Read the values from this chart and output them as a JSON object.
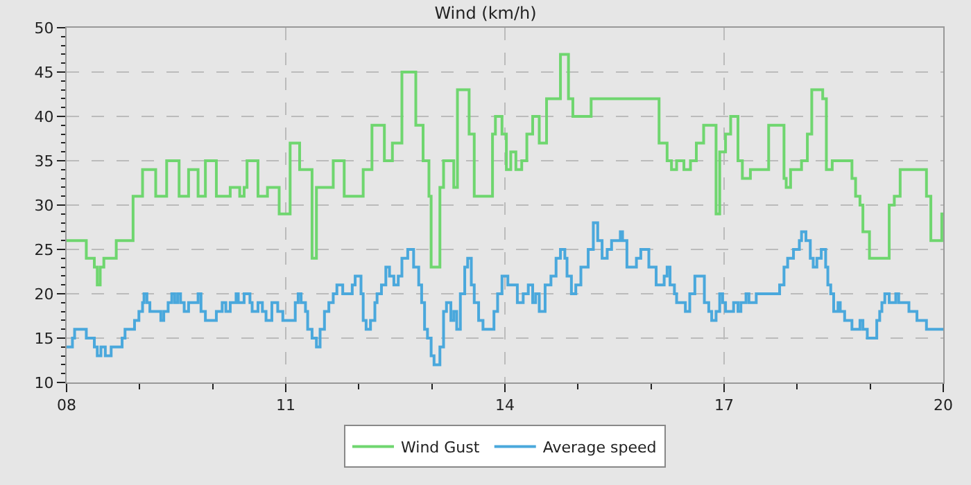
{
  "chart_data": {
    "type": "step",
    "title": "Wind (km/h)",
    "grid": true,
    "legend": "bottom",
    "line_style": "solid",
    "xlim": [
      8,
      20
    ],
    "ylim": [
      10,
      50
    ],
    "xticks": [
      {
        "value": 8,
        "label": "08"
      },
      {
        "value": 9,
        "label": null
      },
      {
        "value": 10,
        "label": null
      },
      {
        "value": 11,
        "label": "11"
      },
      {
        "value": 12,
        "label": null
      },
      {
        "value": 13,
        "label": null
      },
      {
        "value": 14,
        "label": "14"
      },
      {
        "value": 15,
        "label": null
      },
      {
        "value": 16,
        "label": null
      },
      {
        "value": 17,
        "label": "17"
      },
      {
        "value": 18,
        "label": null
      },
      {
        "value": 19,
        "label": null
      },
      {
        "value": 20,
        "label": "20"
      }
    ],
    "yticks": [
      10,
      {
        "value": 11,
        "label": null
      },
      {
        "value": 12,
        "label": null
      },
      {
        "value": 13,
        "label": null
      },
      {
        "value": 14,
        "label": null
      },
      15,
      {
        "value": 16,
        "label": null
      },
      {
        "value": 17,
        "label": null
      },
      {
        "value": 18,
        "label": null
      },
      {
        "value": 19,
        "label": null
      },
      20,
      {
        "value": 21,
        "label": null
      },
      {
        "value": 22,
        "label": null
      },
      {
        "value": 23,
        "label": null
      },
      {
        "value": 24,
        "label": null
      },
      25,
      {
        "value": 26,
        "label": null
      },
      {
        "value": 27,
        "label": null
      },
      {
        "value": 28,
        "label": null
      },
      {
        "value": 29,
        "label": null
      },
      30,
      {
        "value": 31,
        "label": null
      },
      {
        "value": 32,
        "label": null
      },
      {
        "value": 33,
        "label": null
      },
      {
        "value": 34,
        "label": null
      },
      35,
      {
        "value": 36,
        "label": null
      },
      {
        "value": 37,
        "label": null
      },
      {
        "value": 38,
        "label": null
      },
      {
        "value": 39,
        "label": null
      },
      40,
      {
        "value": 41,
        "label": null
      },
      {
        "value": 42,
        "label": null
      },
      {
        "value": 43,
        "label": null
      },
      {
        "value": 44,
        "label": null
      },
      45,
      {
        "value": 46,
        "label": null
      },
      {
        "value": 47,
        "label": null
      },
      {
        "value": 48,
        "label": null
      },
      {
        "value": 49,
        "label": null
      },
      50
    ],
    "series": [
      {
        "name": "Wind Gust",
        "color": "#6fd66f",
        "x": [
          8.0,
          8.27,
          8.38,
          8.42,
          8.46,
          8.51,
          8.68,
          8.91,
          9.04,
          9.22,
          9.37,
          9.54,
          9.67,
          9.8,
          9.9,
          10.05,
          10.24,
          10.37,
          10.43,
          10.47,
          10.62,
          10.75,
          10.91,
          11.06,
          11.19,
          11.36,
          11.42,
          11.59,
          11.65,
          11.8,
          12.06,
          12.18,
          12.35,
          12.46,
          12.59,
          12.78,
          12.88,
          12.96,
          12.99,
          13.11,
          13.16,
          13.3,
          13.35,
          13.51,
          13.58,
          13.77,
          13.83,
          13.87,
          13.96,
          14.02,
          14.08,
          14.15,
          14.23,
          14.3,
          14.38,
          14.47,
          14.57,
          14.76,
          14.87,
          14.93,
          15.06,
          15.18,
          16.07,
          16.11,
          16.22,
          16.28,
          16.35,
          16.45,
          16.54,
          16.62,
          16.72,
          16.85,
          16.89,
          16.94,
          17.02,
          17.09,
          17.19,
          17.25,
          17.36,
          17.59,
          17.61,
          17.76,
          17.82,
          17.85,
          17.91,
          18.06,
          18.14,
          18.2,
          18.35,
          18.4,
          18.48,
          18.71,
          18.75,
          18.8,
          18.86,
          18.9,
          18.99,
          19.2,
          19.26,
          19.33,
          19.41,
          19.73,
          19.77,
          19.83,
          19.94,
          19.98,
          20.0
        ],
        "values": [
          26,
          24,
          23,
          21,
          23,
          24,
          26,
          31,
          34,
          31,
          35,
          31,
          34,
          31,
          35,
          31,
          32,
          31,
          32,
          35,
          31,
          32,
          29,
          37,
          34,
          24,
          32,
          32,
          35,
          31,
          34,
          39,
          35,
          37,
          45,
          39,
          35,
          31,
          23,
          32,
          35,
          32,
          43,
          38,
          31,
          31,
          38,
          40,
          38,
          34,
          36,
          34,
          35,
          38,
          40,
          37,
          42,
          47,
          42,
          40,
          40,
          42,
          42,
          37,
          35,
          34,
          35,
          34,
          35,
          37,
          39,
          39,
          29,
          36,
          38,
          40,
          35,
          33,
          34,
          34,
          39,
          39,
          33,
          32,
          34,
          35,
          38,
          43,
          42,
          34,
          35,
          35,
          33,
          31,
          30,
          27,
          24,
          24,
          30,
          31,
          34,
          34,
          31,
          26,
          26,
          29,
          29
        ]
      },
      {
        "name": "Average speed",
        "color": "#4aa8dc",
        "x": [
          8.0,
          8.08,
          8.11,
          8.23,
          8.27,
          8.34,
          8.38,
          8.42,
          8.47,
          8.53,
          8.61,
          8.76,
          8.8,
          8.87,
          8.93,
          8.99,
          9.04,
          9.06,
          9.1,
          9.14,
          9.25,
          9.29,
          9.33,
          9.39,
          9.44,
          9.48,
          9.52,
          9.56,
          9.61,
          9.67,
          9.8,
          9.84,
          9.9,
          10.05,
          10.13,
          10.18,
          10.24,
          10.32,
          10.35,
          10.43,
          10.51,
          10.54,
          10.62,
          10.68,
          10.73,
          10.81,
          10.89,
          10.96,
          11.13,
          11.17,
          11.21,
          11.27,
          11.3,
          11.36,
          11.42,
          11.47,
          11.53,
          11.59,
          11.65,
          11.7,
          11.78,
          11.91,
          11.95,
          12.03,
          12.06,
          12.1,
          12.16,
          12.22,
          12.25,
          12.31,
          12.37,
          12.42,
          12.48,
          12.54,
          12.59,
          12.67,
          12.75,
          12.82,
          12.86,
          12.9,
          12.94,
          12.99,
          13.03,
          13.11,
          13.16,
          13.2,
          13.26,
          13.3,
          13.34,
          13.39,
          13.45,
          13.49,
          13.54,
          13.58,
          13.64,
          13.7,
          13.85,
          13.9,
          13.96,
          14.04,
          14.17,
          14.25,
          14.32,
          14.38,
          14.42,
          14.47,
          14.55,
          14.63,
          14.7,
          14.76,
          14.82,
          14.85,
          14.91,
          14.97,
          15.04,
          15.14,
          15.21,
          15.27,
          15.33,
          15.4,
          15.46,
          15.58,
          15.61,
          15.67,
          15.8,
          15.86,
          15.97,
          16.07,
          16.18,
          16.22,
          16.26,
          16.32,
          16.35,
          16.47,
          16.53,
          16.6,
          16.73,
          16.79,
          16.83,
          16.89,
          16.94,
          16.98,
          17.02,
          17.13,
          17.19,
          17.23,
          17.3,
          17.34,
          17.44,
          17.76,
          17.82,
          17.87,
          17.95,
          18.03,
          18.06,
          18.12,
          18.18,
          18.22,
          18.27,
          18.33,
          18.39,
          18.42,
          18.46,
          18.5,
          18.56,
          18.59,
          18.65,
          18.75,
          18.86,
          18.9,
          18.96,
          19.09,
          19.13,
          19.16,
          19.2,
          19.26,
          19.35,
          19.39,
          19.53,
          19.64,
          19.77,
          20.0
        ],
        "values": [
          14,
          15,
          16,
          16,
          15,
          15,
          14,
          13,
          14,
          13,
          14,
          15,
          16,
          16,
          17,
          18,
          19,
          20,
          19,
          18,
          18,
          17,
          18,
          19,
          20,
          19,
          20,
          19,
          18,
          19,
          20,
          18,
          17,
          18,
          19,
          18,
          19,
          20,
          19,
          20,
          19,
          18,
          19,
          18,
          17,
          19,
          18,
          17,
          19,
          20,
          19,
          18,
          16,
          15,
          14,
          16,
          18,
          19,
          20,
          21,
          20,
          21,
          22,
          20,
          17,
          16,
          17,
          19,
          20,
          21,
          23,
          22,
          21,
          22,
          24,
          25,
          23,
          21,
          19,
          16,
          15,
          13,
          12,
          14,
          18,
          19,
          17,
          18,
          16,
          20,
          23,
          24,
          21,
          19,
          17,
          16,
          18,
          20,
          22,
          21,
          19,
          20,
          21,
          19,
          20,
          18,
          21,
          22,
          24,
          25,
          24,
          22,
          20,
          21,
          23,
          25,
          28,
          26,
          24,
          25,
          26,
          27,
          26,
          23,
          24,
          25,
          23,
          21,
          22,
          23,
          21,
          20,
          19,
          18,
          20,
          22,
          19,
          18,
          17,
          18,
          20,
          19,
          18,
          19,
          18,
          19,
          20,
          19,
          20,
          21,
          23,
          24,
          25,
          26,
          27,
          26,
          24,
          23,
          24,
          25,
          23,
          21,
          20,
          18,
          19,
          18,
          17,
          16,
          17,
          16,
          15,
          17,
          18,
          19,
          20,
          19,
          20,
          19,
          18,
          17,
          16,
          16
        ]
      }
    ]
  }
}
